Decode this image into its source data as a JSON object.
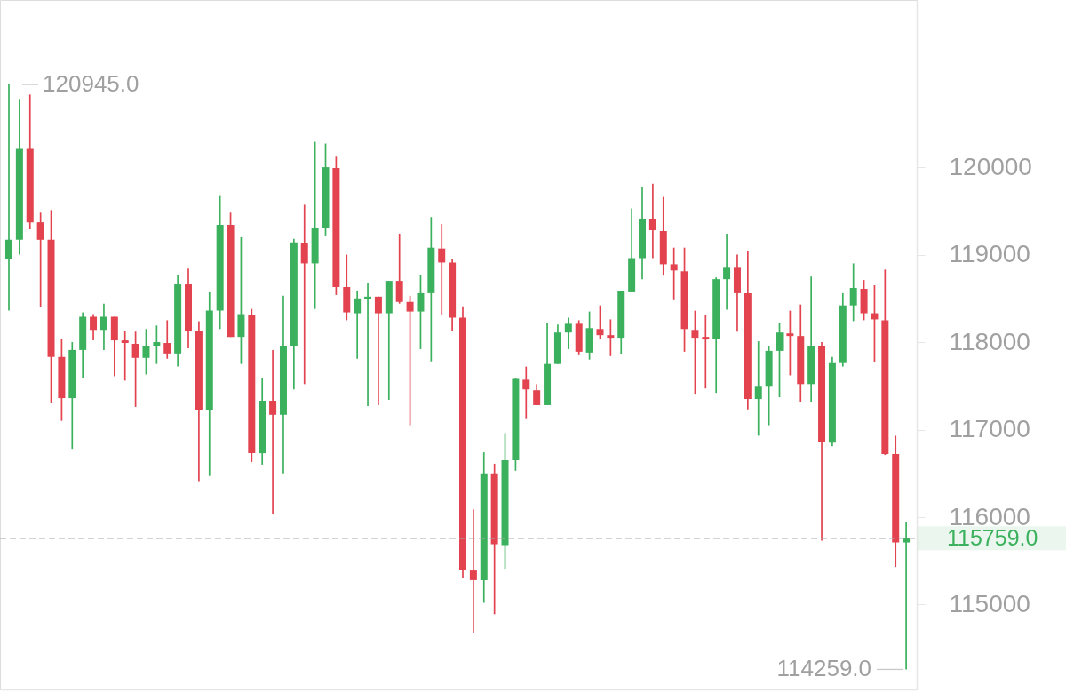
{
  "chart_data": {
    "type": "candlestick",
    "categories": [
      null,
      null,
      null,
      null,
      null,
      null,
      null,
      null,
      null,
      null,
      null,
      null,
      null,
      null,
      null,
      null,
      null,
      null,
      null,
      null,
      null,
      null,
      null,
      null,
      null,
      null,
      null,
      null,
      null,
      null,
      null,
      null,
      null,
      null,
      null,
      null,
      null,
      null,
      null,
      null,
      null,
      null,
      null,
      null,
      null,
      null,
      null,
      null,
      null,
      null,
      null,
      null,
      null,
      null,
      null,
      null,
      null,
      null,
      null,
      null,
      null,
      null,
      null,
      null,
      null,
      null,
      null,
      null,
      null,
      null,
      null,
      null,
      null,
      null,
      null,
      null,
      null,
      null,
      null,
      null,
      null,
      null,
      null,
      null,
      null,
      null
    ],
    "ohlc": [
      [
        118950,
        120945,
        118360,
        119170
      ],
      [
        119170,
        120780,
        119000,
        120210
      ],
      [
        120210,
        120830,
        119290,
        119370
      ],
      [
        119370,
        119480,
        118400,
        119170
      ],
      [
        119170,
        119510,
        117300,
        117830
      ],
      [
        117830,
        118040,
        117100,
        117360
      ],
      [
        117360,
        118000,
        116780,
        117910
      ],
      [
        117910,
        118340,
        117590,
        118290
      ],
      [
        118290,
        118320,
        118020,
        118140
      ],
      [
        118140,
        118440,
        117910,
        118290
      ],
      [
        118290,
        118290,
        117610,
        118020
      ],
      [
        118020,
        118130,
        117560,
        117990
      ],
      [
        117980,
        118120,
        117260,
        117820
      ],
      [
        117820,
        118150,
        117630,
        117950
      ],
      [
        117950,
        118190,
        117750,
        118000
      ],
      [
        117990,
        118250,
        117810,
        117870
      ],
      [
        117870,
        118770,
        117720,
        118660
      ],
      [
        118660,
        118840,
        117930,
        118130
      ],
      [
        118130,
        118240,
        116410,
        117220
      ],
      [
        117220,
        118570,
        116470,
        118360
      ],
      [
        118360,
        119670,
        118150,
        119340
      ],
      [
        119340,
        119480,
        118060,
        118060
      ],
      [
        118060,
        119200,
        117750,
        118320
      ],
      [
        118310,
        118380,
        116630,
        116730
      ],
      [
        116730,
        117590,
        116600,
        117330
      ],
      [
        117330,
        117910,
        116030,
        117170
      ],
      [
        117170,
        118530,
        116500,
        117950
      ],
      [
        117950,
        119180,
        117460,
        119140
      ],
      [
        119130,
        119570,
        117520,
        118900
      ],
      [
        118900,
        120290,
        118380,
        119300
      ],
      [
        119300,
        120270,
        119210,
        120000
      ],
      [
        119990,
        120120,
        118540,
        118630
      ],
      [
        118630,
        119000,
        118250,
        118340
      ],
      [
        118330,
        118590,
        117810,
        118500
      ],
      [
        118490,
        118670,
        117270,
        118520
      ],
      [
        118520,
        118520,
        117280,
        118330
      ],
      [
        118330,
        118700,
        117340,
        118700
      ],
      [
        118700,
        119240,
        118440,
        118460
      ],
      [
        118460,
        118530,
        117050,
        118350
      ],
      [
        118350,
        118770,
        117920,
        118560
      ],
      [
        118560,
        119430,
        117780,
        119080
      ],
      [
        119070,
        119350,
        118310,
        118910
      ],
      [
        118910,
        118950,
        118130,
        118280
      ],
      [
        118280,
        118410,
        115310,
        115390
      ],
      [
        115390,
        116090,
        114680,
        115280
      ],
      [
        115280,
        116740,
        115020,
        116500
      ],
      [
        116500,
        116610,
        114890,
        115690
      ],
      [
        115680,
        116960,
        115410,
        116650
      ],
      [
        116650,
        117590,
        116530,
        117580
      ],
      [
        117570,
        117720,
        117120,
        117460
      ],
      [
        117450,
        117520,
        117280,
        117280
      ],
      [
        117280,
        118220,
        117280,
        117750
      ],
      [
        117750,
        118200,
        117750,
        118110
      ],
      [
        118110,
        118280,
        117920,
        118210
      ],
      [
        118210,
        118250,
        117850,
        117890
      ],
      [
        117880,
        118350,
        117800,
        118160
      ],
      [
        118150,
        118420,
        118040,
        118080
      ],
      [
        118080,
        118260,
        117840,
        118050
      ],
      [
        118050,
        118580,
        117860,
        118580
      ],
      [
        118570,
        119530,
        118570,
        118960
      ],
      [
        118960,
        119770,
        118720,
        119410
      ],
      [
        119410,
        119810,
        118960,
        119280
      ],
      [
        119270,
        119660,
        118760,
        118890
      ],
      [
        118890,
        119080,
        118480,
        118820
      ],
      [
        118810,
        119080,
        117890,
        118150
      ],
      [
        118140,
        118360,
        117400,
        118050
      ],
      [
        118060,
        118310,
        117470,
        118030
      ],
      [
        118040,
        118740,
        117420,
        118720
      ],
      [
        118720,
        119240,
        118370,
        118850
      ],
      [
        118850,
        119000,
        118120,
        118560
      ],
      [
        118560,
        119040,
        117230,
        117350
      ],
      [
        117350,
        118010,
        116930,
        117490
      ],
      [
        117490,
        117950,
        117050,
        117900
      ],
      [
        117900,
        118220,
        117370,
        118110
      ],
      [
        118100,
        118360,
        117620,
        118070
      ],
      [
        118070,
        118430,
        117310,
        117520
      ],
      [
        117520,
        118750,
        117320,
        117950
      ],
      [
        117950,
        118000,
        115730,
        116860
      ],
      [
        116850,
        117830,
        116810,
        117760
      ],
      [
        117760,
        118560,
        117720,
        118420
      ],
      [
        118420,
        118900,
        118240,
        118620
      ],
      [
        118610,
        118710,
        118250,
        118330
      ],
      [
        118330,
        118650,
        117770,
        118260
      ],
      [
        118250,
        118830,
        116710,
        116720
      ],
      [
        116720,
        116930,
        115430,
        115710
      ],
      [
        115710,
        115950,
        114259,
        115759
      ]
    ],
    "colors": [
      "#3bb15d",
      "#3bb15d",
      "#e2434f",
      "#e2434f",
      "#e2434f",
      "#e2434f",
      "#3bb15d",
      "#3bb15d",
      "#e2434f",
      "#3bb15d",
      "#e2434f",
      "#e2434f",
      "#e2434f",
      "#3bb15d",
      "#3bb15d",
      "#e2434f",
      "#3bb15d",
      "#e2434f",
      "#e2434f",
      "#3bb15d",
      "#3bb15d",
      "#e2434f",
      "#3bb15d",
      "#e2434f",
      "#3bb15d",
      "#e2434f",
      "#3bb15d",
      "#3bb15d",
      "#e2434f",
      "#3bb15d",
      "#3bb15d",
      "#e2434f",
      "#e2434f",
      "#3bb15d",
      "#3bb15d",
      "#e2434f",
      "#3bb15d",
      "#e2434f",
      "#e2434f",
      "#3bb15d",
      "#3bb15d",
      "#e2434f",
      "#e2434f",
      "#e2434f",
      "#e2434f",
      "#3bb15d",
      "#e2434f",
      "#3bb15d",
      "#3bb15d",
      "#e2434f",
      "#e2434f",
      "#3bb15d",
      "#3bb15d",
      "#3bb15d",
      "#e2434f",
      "#3bb15d",
      "#e2434f",
      "#e2434f",
      "#3bb15d",
      "#3bb15d",
      "#3bb15d",
      "#e2434f",
      "#e2434f",
      "#e2434f",
      "#e2434f",
      "#e2434f",
      "#e2434f",
      "#3bb15d",
      "#3bb15d",
      "#e2434f",
      "#e2434f",
      "#3bb15d",
      "#3bb15d",
      "#3bb15d",
      "#e2434f",
      "#e2434f",
      "#3bb15d",
      "#e2434f",
      "#3bb15d",
      "#3bb15d",
      "#3bb15d",
      "#e2434f",
      "#e2434f",
      "#e2434f",
      "#e2434f",
      "#3bb15d"
    ],
    "ylim": [
      114030,
      121910
    ],
    "yticks": [
      115000,
      116000,
      117000,
      118000,
      119000,
      120000
    ],
    "tick_labels": "y",
    "ref_lines": [
      {
        "axis": "y",
        "value": 115759,
        "label": "115759.0",
        "color": "#a8a8a8",
        "line_style": "dashed"
      }
    ],
    "annotations": [
      "120945.0",
      "114259.0"
    ]
  }
}
